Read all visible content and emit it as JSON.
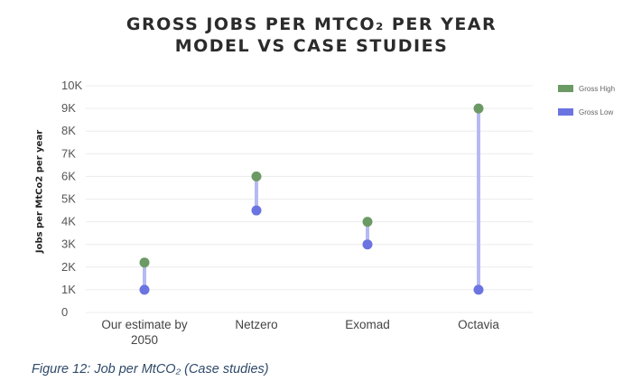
{
  "chart_data": {
    "type": "dumbbell",
    "title_line1": "GROSS JOBS PER MTCO₂ PER YEAR",
    "title_line2": "MODEL VS CASE STUDIES",
    "ylabel": "Jobs per MtCo2 per year",
    "yticks": [
      "0",
      "1K",
      "2K",
      "3K",
      "4K",
      "5K",
      "6K",
      "7K",
      "8K",
      "9K",
      "10K"
    ],
    "ylim": [
      0,
      10000
    ],
    "categories": [
      "Our estimate by 2050",
      "Netzero",
      "Exomad",
      "Octavia"
    ],
    "series": [
      {
        "name": "Gross High",
        "color": "#6b9a64",
        "values": [
          2200,
          6000,
          4000,
          9000
        ]
      },
      {
        "name": "Gross Low",
        "color": "#6b74e0",
        "values": [
          1000,
          4500,
          3000,
          1000
        ]
      }
    ],
    "connector_color": "#b6b9f2",
    "legend_position": "top-right",
    "grid": true
  },
  "caption": "Figure 12: Job per MtCO₂ (Case studies)"
}
